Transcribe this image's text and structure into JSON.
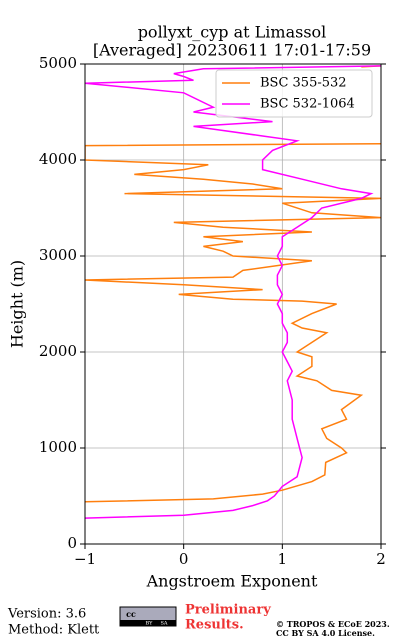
{
  "chart_data": {
    "type": "line",
    "title": [
      "pollyxt_cyp at Limassol",
      "[Averaged] 20230611 17:01-17:59"
    ],
    "xlabel": "Angstroem Exponent",
    "ylabel": "Height (m)",
    "xlim": [
      -1,
      2
    ],
    "xticks": [
      {
        "value": -1,
        "label": "−1"
      },
      0,
      1,
      2
    ],
    "ylim": [
      0,
      5000
    ],
    "yticks": [
      0,
      1000,
      2000,
      3000,
      4000,
      5000
    ],
    "grid": true,
    "legend": "upper right",
    "series": [
      {
        "name": "BSC 355-532",
        "color": "#ff7f0e",
        "y": [
          440,
          470,
          520,
          560,
          650,
          720,
          850,
          950,
          1000,
          1100,
          1200,
          1300,
          1400,
          1550,
          1600,
          1700,
          1750,
          1850,
          1950,
          2000,
          2100,
          2200,
          2250,
          2300,
          2400,
          2500,
          2530,
          2550,
          2600,
          2650,
          2700,
          2750,
          2780,
          2850,
          2950,
          3000,
          3050,
          3100,
          3150,
          3200,
          3250,
          3300,
          3350,
          3400,
          3450,
          3550,
          3600,
          3650,
          3700,
          3750,
          3800,
          3850,
          3900,
          3950,
          4000,
          4150,
          4170,
          4500,
          4970,
          4980
        ],
        "x": [
          -1,
          0.3,
          0.8,
          1.0,
          1.3,
          1.43,
          1.44,
          1.65,
          1.6,
          1.45,
          1.4,
          1.65,
          1.6,
          1.8,
          1.5,
          1.35,
          1.15,
          1.3,
          1.3,
          1.15,
          1.3,
          1.45,
          1.2,
          1.1,
          1.3,
          1.55,
          1.2,
          0.5,
          -0.05,
          0.8,
          0.0,
          -1,
          0.5,
          0.6,
          1.3,
          0.5,
          0.4,
          0.2,
          0.6,
          0.2,
          1.3,
          0.4,
          -0.1,
          2.0,
          1.3,
          1.0,
          2.0,
          -0.6,
          1.0,
          0.7,
          0.2,
          -0.5,
          0.0,
          0.25,
          -1,
          -1,
          2.0,
          null,
          1.8,
          2.0
        ]
      },
      {
        "name": "BSC 532-1064",
        "color": "#ff00ff",
        "y": [
          270,
          300,
          350,
          400,
          450,
          500,
          600,
          700,
          900,
          1100,
          1300,
          1500,
          1700,
          1800,
          1900,
          2000,
          2100,
          2200,
          2300,
          2400,
          2500,
          2600,
          2700,
          2800,
          2900,
          3000,
          3100,
          3200,
          3300,
          3400,
          3500,
          3600,
          3650,
          3700,
          3800,
          3900,
          4000,
          4100,
          4200,
          4250,
          4350,
          4400,
          4500,
          4550,
          4700,
          4800,
          4830,
          4870,
          4900,
          4950,
          4980
        ],
        "x": [
          -1,
          0.0,
          0.5,
          0.7,
          0.85,
          0.92,
          1.0,
          1.15,
          1.2,
          1.15,
          1.1,
          1.1,
          1.05,
          1.1,
          1.05,
          1.0,
          1.05,
          1.05,
          1.0,
          1.0,
          0.95,
          1.0,
          0.95,
          0.95,
          1.0,
          0.95,
          1.0,
          1.0,
          1.15,
          1.3,
          1.4,
          1.8,
          1.9,
          1.6,
          1.2,
          0.8,
          0.8,
          0.9,
          1.15,
          0.8,
          0.1,
          0.9,
          0.1,
          0.3,
          0.0,
          -1,
          0.1,
          0.0,
          -0.1,
          0.2,
          2.0
        ]
      }
    ]
  },
  "footer": {
    "version": "Version: 3.6",
    "method": "Method: Klett",
    "cc": [
      "cc",
      "BY",
      "SA"
    ],
    "preliminary": [
      "Preliminary",
      "Results."
    ],
    "license": [
      "© TROPOS & ECoE 2023.",
      "CC BY SA 4.0 License."
    ]
  }
}
